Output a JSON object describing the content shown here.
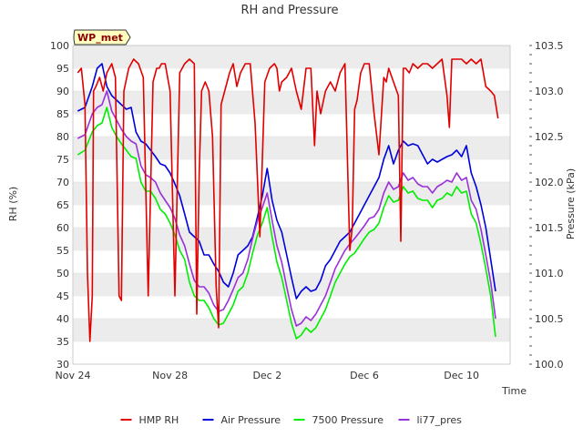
{
  "chart_data": {
    "type": "line",
    "title": "RH and Pressure",
    "station_tag": "WP_met",
    "xlabel": "Time",
    "ylabel_left": "RH (%)",
    "ylabel_right": "Pressure (kPa)",
    "x_unit": "day",
    "x_ticks": [
      {
        "label": "Nov 24",
        "day": 0
      },
      {
        "label": "Nov 28",
        "day": 4
      },
      {
        "label": "Dec 2",
        "day": 8
      },
      {
        "label": "Dec 6",
        "day": 12
      },
      {
        "label": "Dec 10",
        "day": 16
      }
    ],
    "xlim": [
      0,
      18.0
    ],
    "ylim_left": [
      30,
      100
    ],
    "yticks_left": [
      30,
      35,
      40,
      45,
      50,
      55,
      60,
      65,
      70,
      75,
      80,
      85,
      90,
      95,
      100
    ],
    "ylim_right": [
      100.0,
      103.5
    ],
    "yticks_right": [
      "100.0",
      "100.5",
      "101.0",
      "101.5",
      "102.0",
      "102.5",
      "103.0",
      "103.5"
    ],
    "grid": "horizontal bands",
    "legend_position": "bottom",
    "x_tick_format": "Nov 24 = day 0; Dec 2 = day 8",
    "series": [
      {
        "name": "HMP RH",
        "axis": "left",
        "color": "#e00000",
        "x": [
          0.2,
          0.35,
          0.5,
          0.6,
          0.7,
          0.8,
          0.85,
          0.95,
          1.1,
          1.25,
          1.4,
          1.6,
          1.75,
          1.9,
          2.0,
          2.1,
          2.3,
          2.5,
          2.7,
          2.9,
          3.1,
          3.3,
          3.45,
          3.55,
          3.65,
          3.8,
          4.0,
          4.2,
          4.4,
          4.6,
          4.8,
          5.0,
          5.1,
          5.2,
          5.3,
          5.45,
          5.6,
          5.75,
          5.9,
          6.0,
          6.1,
          6.3,
          6.45,
          6.6,
          6.75,
          6.9,
          7.1,
          7.3,
          7.5,
          7.7,
          7.9,
          8.1,
          8.3,
          8.4,
          8.5,
          8.6,
          8.8,
          9.0,
          9.2,
          9.4,
          9.6,
          9.8,
          9.95,
          10.05,
          10.2,
          10.4,
          10.6,
          10.8,
          11.0,
          11.2,
          11.4,
          11.5,
          11.6,
          11.7,
          11.85,
          12.0,
          12.2,
          12.4,
          12.6,
          12.8,
          12.9,
          13.0,
          13.2,
          13.4,
          13.5,
          13.6,
          13.7,
          13.85,
          14.0,
          14.2,
          14.4,
          14.6,
          14.8,
          15.0,
          15.2,
          15.4,
          15.5,
          15.6,
          15.8,
          16.0,
          16.2,
          16.4,
          16.6,
          16.8,
          17.0,
          17.2,
          17.35,
          17.5
        ],
        "values": [
          94,
          95,
          87,
          50,
          35,
          45,
          90,
          91,
          93,
          90,
          94,
          96,
          93,
          45,
          44,
          90,
          95,
          97,
          96,
          93,
          45,
          92,
          95,
          95,
          96,
          96,
          90,
          45,
          94,
          96,
          97,
          96,
          41,
          72,
          90,
          92,
          90,
          80,
          47,
          38,
          87,
          91,
          94,
          96,
          91,
          94,
          96,
          96,
          83,
          58,
          92,
          95,
          96,
          95,
          90,
          92,
          93,
          95,
          90,
          86,
          95,
          95,
          78,
          90,
          85,
          90,
          92,
          90,
          94,
          96,
          55,
          60,
          86,
          88,
          94,
          96,
          96,
          85,
          76,
          93,
          92,
          95,
          92,
          89,
          57,
          95,
          95,
          94,
          96,
          95,
          96,
          96,
          95,
          96,
          97,
          89,
          82,
          97,
          97,
          97,
          96,
          97,
          96,
          97,
          91,
          90,
          89,
          84
        ]
      },
      {
        "name": "Air Pressure",
        "axis": "right",
        "color": "#0000dd",
        "x": [
          0.2,
          0.5,
          0.8,
          1.0,
          1.2,
          1.4,
          1.6,
          1.8,
          2.0,
          2.2,
          2.4,
          2.6,
          2.8,
          3.0,
          3.2,
          3.4,
          3.6,
          3.8,
          4.0,
          4.2,
          4.4,
          4.6,
          4.8,
          5.0,
          5.2,
          5.4,
          5.6,
          5.8,
          6.0,
          6.2,
          6.4,
          6.6,
          6.8,
          7.0,
          7.2,
          7.4,
          7.6,
          7.8,
          8.0,
          8.2,
          8.4,
          8.6,
          8.8,
          9.0,
          9.2,
          9.4,
          9.6,
          9.8,
          10.0,
          10.2,
          10.4,
          10.6,
          10.8,
          11.0,
          11.2,
          11.4,
          11.6,
          11.8,
          12.0,
          12.2,
          12.4,
          12.6,
          12.8,
          13.0,
          13.2,
          13.4,
          13.6,
          13.8,
          14.0,
          14.2,
          14.4,
          14.6,
          14.8,
          15.0,
          15.2,
          15.4,
          15.6,
          15.8,
          16.0,
          16.2,
          16.4,
          16.6,
          16.8,
          17.0,
          17.2,
          17.4
        ],
        "values": [
          102.78,
          102.82,
          103.05,
          103.25,
          103.3,
          103.05,
          102.95,
          102.9,
          102.85,
          102.8,
          102.82,
          102.55,
          102.45,
          102.42,
          102.35,
          102.28,
          102.2,
          102.18,
          102.1,
          101.98,
          101.85,
          101.65,
          101.45,
          101.4,
          101.35,
          101.2,
          101.2,
          101.1,
          101.02,
          100.9,
          100.85,
          101.0,
          101.2,
          101.25,
          101.3,
          101.4,
          101.62,
          101.85,
          102.15,
          101.8,
          101.58,
          101.45,
          101.2,
          100.95,
          100.72,
          100.8,
          100.85,
          100.8,
          100.82,
          100.92,
          101.08,
          101.15,
          101.25,
          101.35,
          101.4,
          101.45,
          101.55,
          101.65,
          101.75,
          101.85,
          101.95,
          102.05,
          102.25,
          102.4,
          102.2,
          102.35,
          102.45,
          102.4,
          102.42,
          102.4,
          102.3,
          102.2,
          102.25,
          102.22,
          102.25,
          102.28,
          102.3,
          102.35,
          102.28,
          102.4,
          102.1,
          101.95,
          101.75,
          101.5,
          101.15,
          100.8
        ]
      },
      {
        "name": "7500 Pressure",
        "axis": "right",
        "color": "#00ee00",
        "x": [
          0.2,
          0.5,
          0.8,
          1.0,
          1.2,
          1.4,
          1.6,
          1.8,
          2.0,
          2.2,
          2.4,
          2.6,
          2.8,
          3.0,
          3.2,
          3.4,
          3.6,
          3.8,
          4.0,
          4.2,
          4.4,
          4.6,
          4.8,
          5.0,
          5.2,
          5.4,
          5.6,
          5.8,
          6.0,
          6.2,
          6.4,
          6.6,
          6.8,
          7.0,
          7.2,
          7.4,
          7.6,
          7.8,
          8.0,
          8.2,
          8.4,
          8.6,
          8.8,
          9.0,
          9.2,
          9.4,
          9.6,
          9.8,
          10.0,
          10.2,
          10.4,
          10.6,
          10.8,
          11.0,
          11.2,
          11.4,
          11.6,
          11.8,
          12.0,
          12.2,
          12.4,
          12.6,
          12.8,
          13.0,
          13.2,
          13.4,
          13.6,
          13.8,
          14.0,
          14.2,
          14.4,
          14.6,
          14.8,
          15.0,
          15.2,
          15.4,
          15.6,
          15.8,
          16.0,
          16.2,
          16.4,
          16.6,
          16.8,
          17.0,
          17.2,
          17.4
        ],
        "values": [
          102.3,
          102.35,
          102.55,
          102.62,
          102.65,
          102.82,
          102.6,
          102.5,
          102.42,
          102.35,
          102.28,
          102.26,
          102.0,
          101.9,
          101.9,
          101.82,
          101.7,
          101.65,
          101.55,
          101.42,
          101.25,
          101.15,
          100.9,
          100.75,
          100.7,
          100.7,
          100.62,
          100.5,
          100.43,
          100.45,
          100.55,
          100.65,
          100.8,
          100.85,
          101.0,
          101.22,
          101.42,
          101.55,
          101.72,
          101.4,
          101.12,
          100.95,
          100.7,
          100.45,
          100.28,
          100.32,
          100.4,
          100.35,
          100.4,
          100.5,
          100.6,
          100.75,
          100.9,
          101.0,
          101.1,
          101.18,
          101.22,
          101.3,
          101.38,
          101.45,
          101.48,
          101.55,
          101.72,
          101.85,
          101.78,
          101.8,
          101.95,
          101.88,
          101.9,
          101.82,
          101.8,
          101.8,
          101.72,
          101.8,
          101.82,
          101.88,
          101.85,
          101.95,
          101.88,
          101.9,
          101.65,
          101.55,
          101.32,
          101.05,
          100.75,
          100.3
        ]
      },
      {
        "name": "li77_pres",
        "axis": "right",
        "color": "#9a30d8",
        "x": [
          0.2,
          0.5,
          0.8,
          1.0,
          1.2,
          1.4,
          1.6,
          1.8,
          2.0,
          2.2,
          2.4,
          2.6,
          2.8,
          3.0,
          3.2,
          3.4,
          3.6,
          3.8,
          4.0,
          4.2,
          4.4,
          4.6,
          4.8,
          5.0,
          5.2,
          5.4,
          5.6,
          5.8,
          6.0,
          6.2,
          6.4,
          6.6,
          6.8,
          7.0,
          7.2,
          7.4,
          7.6,
          7.8,
          8.0,
          8.2,
          8.4,
          8.6,
          8.8,
          9.0,
          9.2,
          9.4,
          9.6,
          9.8,
          10.0,
          10.2,
          10.4,
          10.6,
          10.8,
          11.0,
          11.2,
          11.4,
          11.6,
          11.8,
          12.0,
          12.2,
          12.4,
          12.6,
          12.8,
          13.0,
          13.2,
          13.4,
          13.6,
          13.8,
          14.0,
          14.2,
          14.4,
          14.6,
          14.8,
          15.0,
          15.2,
          15.4,
          15.6,
          15.8,
          16.0,
          16.2,
          16.4,
          16.6,
          16.8,
          17.0,
          17.2,
          17.4
        ],
        "values": [
          102.48,
          102.52,
          102.75,
          102.82,
          102.85,
          103.0,
          102.78,
          102.68,
          102.58,
          102.5,
          102.45,
          102.42,
          102.18,
          102.08,
          102.05,
          102.0,
          101.88,
          101.8,
          101.72,
          101.6,
          101.42,
          101.3,
          101.1,
          100.92,
          100.85,
          100.85,
          100.78,
          100.65,
          100.58,
          100.6,
          100.7,
          100.82,
          100.95,
          101.0,
          101.15,
          101.38,
          101.58,
          101.72,
          101.88,
          101.58,
          101.3,
          101.12,
          100.85,
          100.6,
          100.42,
          100.45,
          100.52,
          100.48,
          100.55,
          100.65,
          100.75,
          100.9,
          101.05,
          101.15,
          101.25,
          101.32,
          101.38,
          101.45,
          101.52,
          101.6,
          101.62,
          101.7,
          101.88,
          102.0,
          101.92,
          101.95,
          102.1,
          102.02,
          102.05,
          101.98,
          101.95,
          101.95,
          101.88,
          101.95,
          101.98,
          102.02,
          102.0,
          102.1,
          102.02,
          102.05,
          101.8,
          101.7,
          101.48,
          101.2,
          100.9,
          100.5
        ]
      }
    ]
  }
}
